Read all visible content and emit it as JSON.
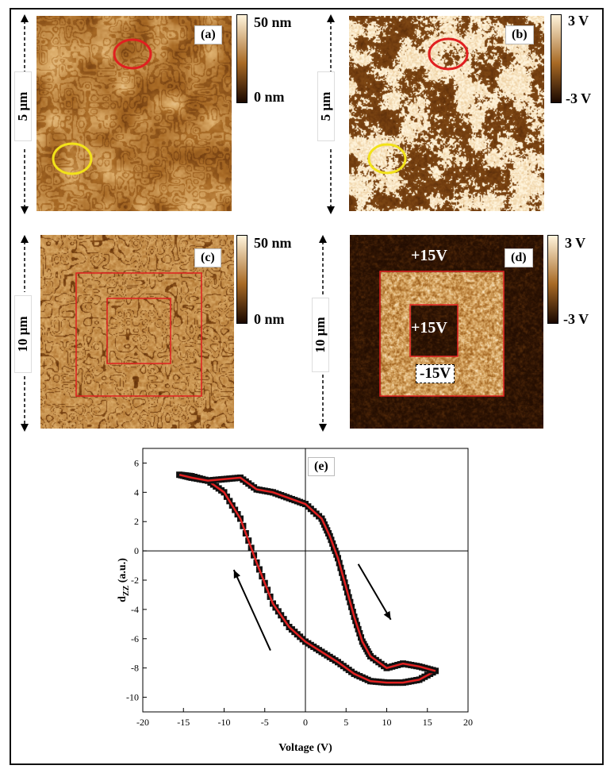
{
  "panels": {
    "a": {
      "label": "(a)",
      "scale": "5 µm",
      "cb_top": "50 nm",
      "cb_bottom": "0 nm"
    },
    "b": {
      "label": "(b)",
      "scale": "5 µm",
      "cb_top": "3 V",
      "cb_bottom": "-3 V"
    },
    "c": {
      "label": "(c)",
      "scale": "10 µm",
      "cb_top": "50 nm",
      "cb_bottom": "0 nm"
    },
    "d": {
      "label": "(d)",
      "scale": "10 µm",
      "cb_top": "3 V",
      "cb_bottom": "-3 V",
      "annot_outer": "+15V",
      "annot_inner": "+15V",
      "annot_mid": "-15V"
    },
    "e": {
      "label": "(e)"
    }
  },
  "colors": {
    "map_dark": "#1a0800",
    "map_mid": "#a86a25",
    "map_light": "#fff4dc",
    "frame_red": "#e02020",
    "marker_yellow": "#f2e21a",
    "curve_red": "#e02020"
  },
  "chart_data": {
    "type": "line",
    "title": "",
    "xlabel": "Voltage (V)",
    "ylabel": "dZZ (a.u.)",
    "ylabel_main": "d",
    "ylabel_sub": "ZZ",
    "ylabel_unit": " (a.u.)",
    "xlim": [
      -20,
      20
    ],
    "ylim": [
      -11,
      7
    ],
    "xticks": [
      -20,
      -15,
      -10,
      -5,
      0,
      5,
      10,
      15,
      20
    ],
    "yticks": [
      -10,
      -8,
      -6,
      -4,
      -2,
      0,
      2,
      4,
      6
    ],
    "grid": false,
    "series": [
      {
        "x": [
          16,
          14,
          12,
          10,
          8,
          6,
          4,
          2,
          0,
          -2,
          -4,
          -6,
          -8,
          -10,
          -12,
          -14,
          -15.5
        ],
        "y": [
          -8.2,
          -8.8,
          -9.0,
          -9.0,
          -8.9,
          -8.4,
          -7.6,
          -6.9,
          -6.2,
          -5.2,
          -3.6,
          -0.8,
          2.2,
          4.0,
          4.8,
          5.1,
          5.2
        ]
      },
      {
        "x": [
          -15.5,
          -14,
          -12,
          -10,
          -8,
          -6,
          -4,
          -2,
          0,
          2,
          3,
          4,
          5,
          6,
          7,
          8,
          10,
          12,
          14,
          16
        ],
        "y": [
          5.2,
          5.0,
          4.8,
          4.9,
          5.0,
          4.2,
          4.0,
          3.6,
          3.2,
          2.2,
          1.0,
          -0.5,
          -2.5,
          -4.5,
          -6.2,
          -7.2,
          -8.0,
          -7.7,
          -7.9,
          -8.2
        ]
      }
    ],
    "arrows": [
      {
        "from": [
          6.5,
          -0.9
        ],
        "to": [
          10.5,
          -4.7
        ]
      },
      {
        "from": [
          -4.3,
          -6.8
        ],
        "to": [
          -8.8,
          -1.3
        ]
      }
    ]
  }
}
